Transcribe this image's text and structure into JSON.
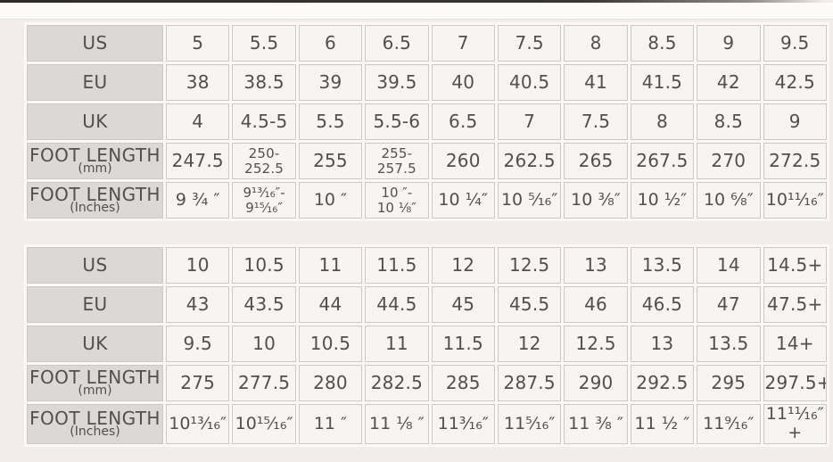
{
  "colors": {
    "page_bg": "#f2edeb",
    "top_strip_bg": "#fcfbfa",
    "top_edge_line": "#2e2c2b",
    "header_cell_bg": "#dbd8d6",
    "data_cell_bg": "#f7f4f3",
    "cell_border": "#ccc8c5",
    "text": "#524f4c"
  },
  "chart_data": [
    {
      "type": "table",
      "rows": [
        {
          "label": "US",
          "sublabel": "",
          "values": [
            "5",
            "5.5",
            "6",
            "6.5",
            "7",
            "7.5",
            "8",
            "8.5",
            "9",
            "9.5"
          ]
        },
        {
          "label": "EU",
          "sublabel": "",
          "values": [
            "38",
            "38.5",
            "39",
            "39.5",
            "40",
            "40.5",
            "41",
            "41.5",
            "42",
            "42.5"
          ]
        },
        {
          "label": "UK",
          "sublabel": "",
          "values": [
            "4",
            "4.5-5",
            "5.5",
            "5.5-6",
            "6.5",
            "7",
            "7.5",
            "8",
            "8.5",
            "9"
          ]
        },
        {
          "label": "FOOT LENGTH",
          "sublabel": "(mm)",
          "values": [
            "247.5",
            "250-\n252.5",
            "255",
            "255-\n257.5",
            "260",
            "262.5",
            "265",
            "267.5",
            "270",
            "272.5"
          ]
        },
        {
          "label": "FOOT LENGTH",
          "sublabel": "(Inches)",
          "values": [
            "9 ³⁄₄ ″",
            "9¹³⁄₁₆″-\n9¹⁵⁄₁₆″",
            "10 ″",
            "10 ″-\n10 ¹⁄₈″",
            "10 ¹⁄₄″",
            "10 ⁵⁄₁₆″",
            "10 ³⁄₈″",
            "10 ¹⁄₂″",
            "10 ⁶⁄₈″",
            "10¹¹⁄₁₆″"
          ]
        }
      ]
    },
    {
      "type": "table",
      "rows": [
        {
          "label": "US",
          "sublabel": "",
          "values": [
            "10",
            "10.5",
            "11",
            "11.5",
            "12",
            "12.5",
            "13",
            "13.5",
            "14",
            "14.5+"
          ]
        },
        {
          "label": "EU",
          "sublabel": "",
          "values": [
            "43",
            "43.5",
            "44",
            "44.5",
            "45",
            "45.5",
            "46",
            "46.5",
            "47",
            "47.5+"
          ]
        },
        {
          "label": "UK",
          "sublabel": "",
          "values": [
            "9.5",
            "10",
            "10.5",
            "11",
            "11.5",
            "12",
            "12.5",
            "13",
            "13.5",
            "14+"
          ]
        },
        {
          "label": "FOOT LENGTH",
          "sublabel": "(mm)",
          "values": [
            "275",
            "277.5",
            "280",
            "282.5",
            "285",
            "287.5",
            "290",
            "292.5",
            "295",
            "297.5+"
          ]
        },
        {
          "label": "FOOT LENGTH",
          "sublabel": "(Inches)",
          "values": [
            "10¹³⁄₁₆″",
            "10¹⁵⁄₁₆″",
            "11 ″",
            "11 ¹⁄₈ ″",
            "11³⁄₁₆″",
            "11⁵⁄₁₆″",
            "11 ³⁄₈ ″",
            "11 ¹⁄₂ ″",
            "11⁹⁄₁₆″",
            "11¹¹⁄₁₆″+"
          ]
        }
      ]
    }
  ]
}
